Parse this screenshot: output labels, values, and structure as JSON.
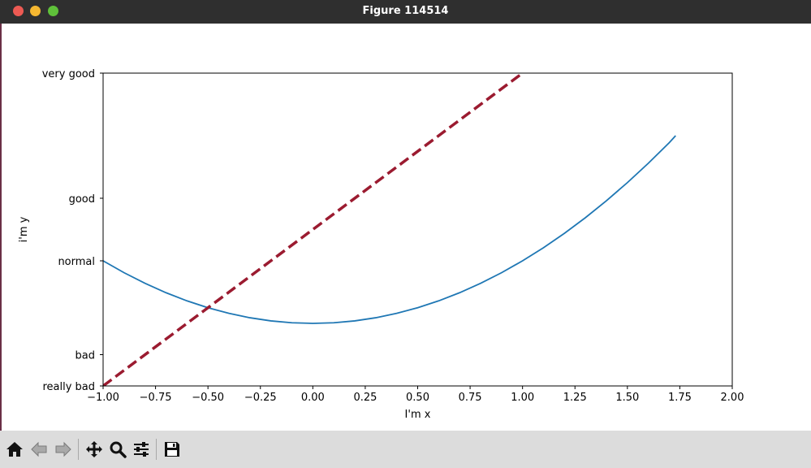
{
  "window": {
    "title": "Figure 114514"
  },
  "toolbar": {
    "buttons": [
      {
        "icon": "home-icon"
      },
      {
        "icon": "back-arrow-icon"
      },
      {
        "icon": "forward-arrow-icon"
      },
      {
        "icon": "pan-icon"
      },
      {
        "icon": "zoom-icon"
      },
      {
        "icon": "configure-subplots-icon"
      },
      {
        "icon": "save-icon"
      }
    ]
  },
  "chart_data": {
    "type": "line",
    "xlabel": "I'm x",
    "ylabel": "i'm y",
    "xlim": [
      -1,
      2
    ],
    "ylim": [
      -2,
      3
    ],
    "xticks": [
      -1.0,
      -0.75,
      -0.5,
      -0.25,
      0.0,
      0.25,
      0.5,
      0.75,
      1.0,
      1.25,
      1.5,
      1.75,
      2.0
    ],
    "xtick_labels": [
      "−1.00",
      "−0.75",
      "−0.50",
      "−0.25",
      "0.00",
      "0.25",
      "0.50",
      "0.75",
      "1.00",
      "1.25",
      "1.50",
      "1.75",
      "2.00"
    ],
    "yticks": [
      -2,
      -1.5,
      0,
      1.0,
      3
    ],
    "ytick_labels": [
      "really bad",
      "bad",
      "normal",
      "good",
      "very good"
    ],
    "grid": false,
    "series": [
      {
        "style": "solid",
        "color": "#1f77b4",
        "x": [
          -1.0,
          -0.9,
          -0.8,
          -0.7,
          -0.6,
          -0.5,
          -0.4,
          -0.3,
          -0.2,
          -0.1,
          0.0,
          0.1,
          0.2,
          0.3,
          0.4,
          0.5,
          0.6,
          0.7,
          0.8,
          0.9,
          1.0,
          1.1,
          1.2,
          1.3,
          1.4,
          1.5,
          1.6,
          1.7,
          1.73
        ],
        "y": [
          0.0,
          -0.19,
          -0.36,
          -0.51,
          -0.64,
          -0.75,
          -0.84,
          -0.91,
          -0.96,
          -0.99,
          -1.0,
          -0.99,
          -0.96,
          -0.91,
          -0.84,
          -0.75,
          -0.64,
          -0.51,
          -0.36,
          -0.19,
          0.0,
          0.21,
          0.44,
          0.69,
          0.96,
          1.25,
          1.56,
          1.89,
          2.0
        ]
      },
      {
        "style": "dashed",
        "color": "#9b1b30",
        "x": [
          -1.0,
          1.0
        ],
        "y": [
          -2.0,
          3.0
        ]
      }
    ]
  }
}
